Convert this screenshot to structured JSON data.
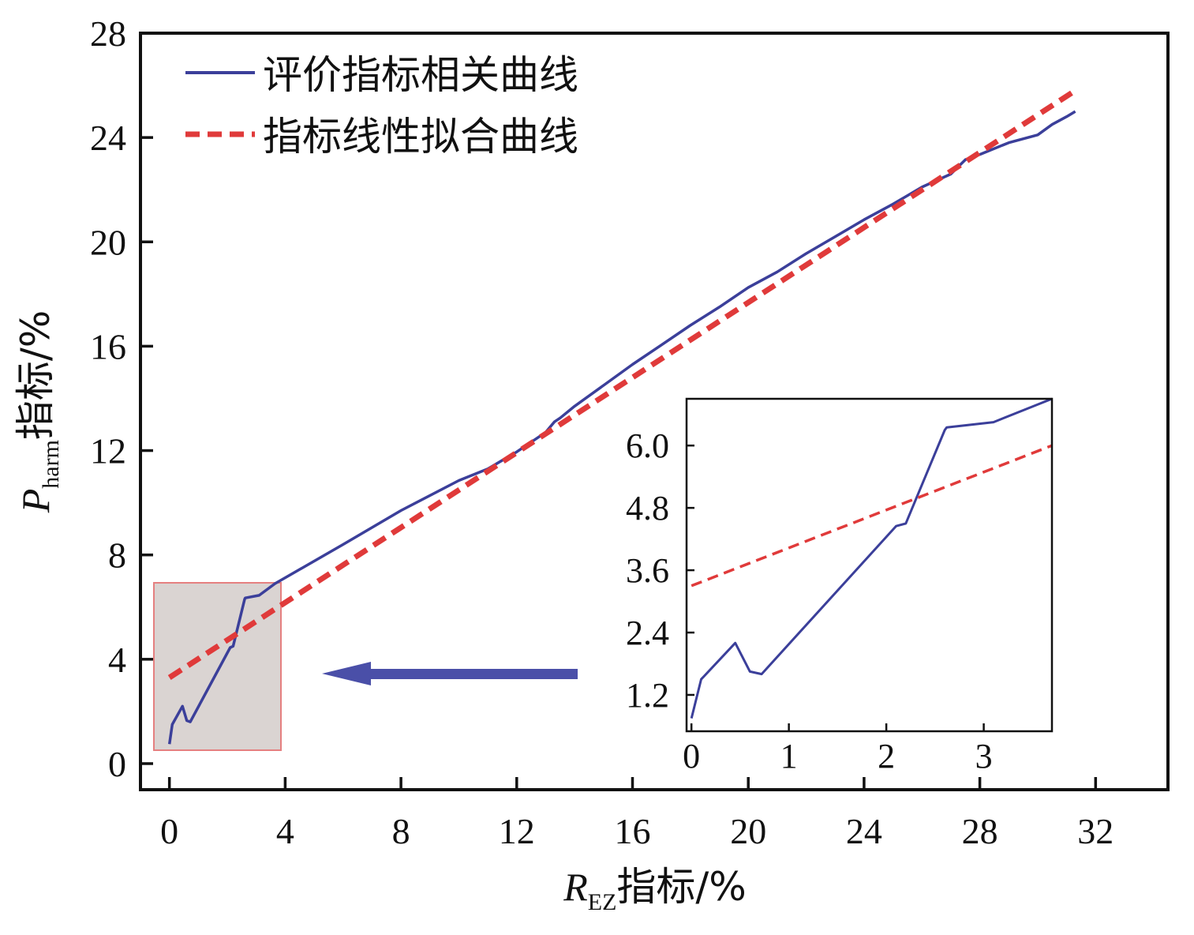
{
  "chart_data": {
    "type": "line",
    "xlabel": {
      "main": "R",
      "sub": "EZ",
      "suffix": "指标/%"
    },
    "ylabel": {
      "main": "P",
      "sub": "harm",
      "suffix": "指标/%"
    },
    "xlim": [
      -1,
      34.5
    ],
    "ylim": [
      -1,
      28
    ],
    "xticks": [
      0,
      4,
      8,
      12,
      16,
      20,
      24,
      28,
      32
    ],
    "yticks": [
      0,
      4,
      8,
      12,
      16,
      20,
      24,
      28
    ],
    "grid": false,
    "legend": {
      "position": "top-left",
      "entries": [
        "评价指标相关曲线",
        "指标线性拟合曲线"
      ]
    },
    "series": [
      {
        "name": "评价指标相关曲线",
        "style": "solid",
        "color": "#3b3f9a",
        "x": [
          0,
          0.1,
          0.45,
          0.6,
          0.72,
          2.1,
          2.2,
          2.6,
          2.62,
          3.1,
          3.65,
          6,
          8,
          10,
          11,
          12,
          13,
          13.3,
          13.5,
          14,
          15,
          16,
          17,
          18,
          19,
          20,
          21,
          22,
          23,
          24,
          25,
          26,
          27,
          27.5,
          28,
          29,
          30,
          30.5,
          31,
          31.3
        ],
        "y": [
          0.75,
          1.5,
          2.2,
          1.65,
          1.6,
          4.45,
          4.5,
          6.3,
          6.35,
          6.45,
          6.9,
          8.4,
          9.7,
          10.85,
          11.3,
          11.95,
          12.7,
          13.1,
          13.25,
          13.7,
          14.5,
          15.3,
          16.05,
          16.8,
          17.5,
          18.25,
          18.85,
          19.55,
          20.2,
          20.85,
          21.45,
          22.1,
          22.6,
          23.15,
          23.35,
          23.8,
          24.1,
          24.5,
          24.8,
          25.0
        ]
      },
      {
        "name": "指标线性拟合曲线",
        "style": "dashed",
        "color": "#e03a3a",
        "x": [
          0,
          31.3
        ],
        "y": [
          3.3,
          25.8
        ]
      }
    ],
    "inset": {
      "xlim": [
        -0.05,
        3.7
      ],
      "ylim": [
        0.5,
        6.9
      ],
      "xticks": [
        0,
        1,
        2,
        3
      ],
      "xtick_labels": [
        "0",
        "1",
        "2",
        "3"
      ],
      "yticks": [
        1.2,
        2.4,
        3.6,
        4.8,
        6.0
      ],
      "ytick_labels": [
        "1.2",
        "2.4",
        "3.6",
        "4.8",
        "6.0"
      ],
      "series": [
        {
          "style": "solid",
          "color": "#3b3f9a",
          "x": [
            0,
            0.1,
            0.45,
            0.6,
            0.72,
            2.1,
            2.2,
            2.6,
            2.62,
            3.1,
            3.7
          ],
          "y": [
            0.75,
            1.5,
            2.2,
            1.65,
            1.6,
            4.45,
            4.5,
            6.3,
            6.35,
            6.45,
            6.9
          ]
        },
        {
          "style": "dashed",
          "color": "#e03a3a",
          "x": [
            0,
            3.7
          ],
          "y": [
            3.3,
            6.0
          ]
        }
      ]
    }
  }
}
